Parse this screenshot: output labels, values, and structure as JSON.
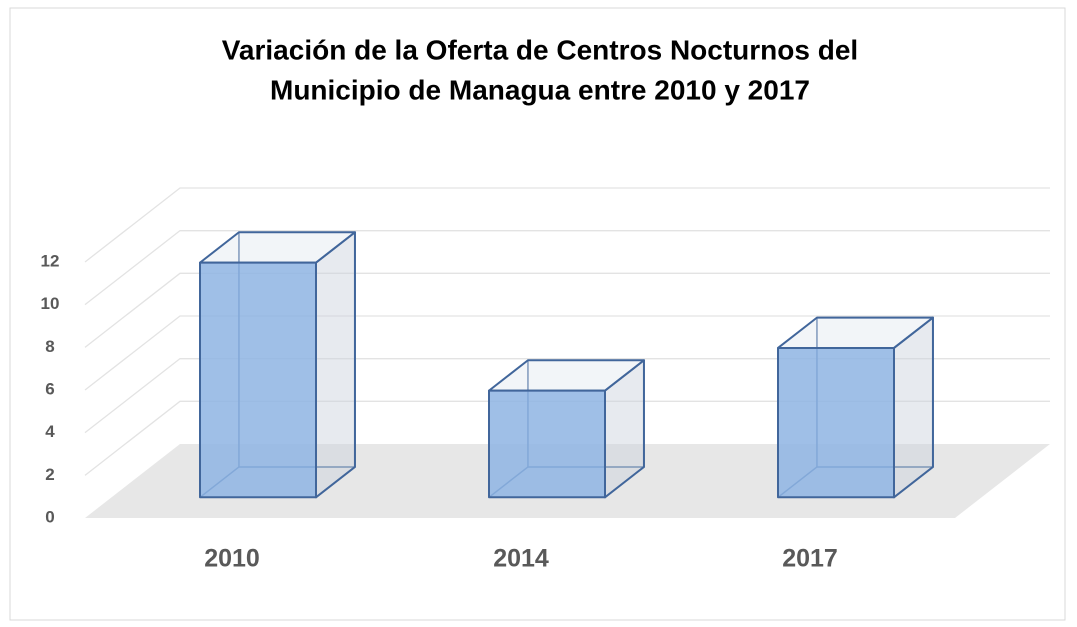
{
  "chart_data": {
    "type": "bar3d",
    "title": [
      "Variación de la Oferta de Centros Nocturnos del",
      "Municipio de Managua entre 2010 y 2017"
    ],
    "categories": [
      "2010",
      "2014",
      "2017"
    ],
    "values": [
      11,
      5,
      7
    ],
    "color": "#8eb4e3",
    "ylim": [
      0,
      12
    ],
    "yticks": [
      0,
      2,
      4,
      6,
      8,
      10,
      12
    ],
    "grid": true
  }
}
